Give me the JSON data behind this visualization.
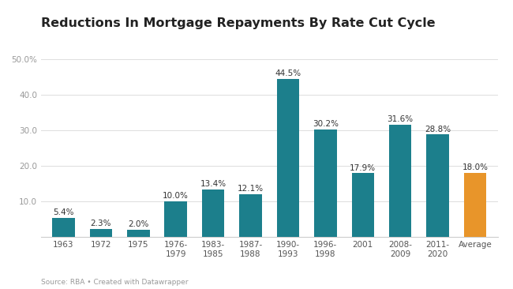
{
  "title": "Reductions In Mortgage Repayments By Rate Cut Cycle",
  "source": "Source: RBA • Created with Datawrapper",
  "categories": [
    "1963",
    "1972",
    "1975",
    "1976-\n1979",
    "1983-\n1985",
    "1987-\n1988",
    "1990-\n1993",
    "1996-\n1998",
    "2001",
    "2008-\n2009",
    "2011-\n2020",
    "Average"
  ],
  "values": [
    5.4,
    2.3,
    2.0,
    10.0,
    13.4,
    12.1,
    44.5,
    30.2,
    17.9,
    31.6,
    28.8,
    18.0
  ],
  "bar_colors": [
    "#1c7f8c",
    "#1c7f8c",
    "#1c7f8c",
    "#1c7f8c",
    "#1c7f8c",
    "#1c7f8c",
    "#1c7f8c",
    "#1c7f8c",
    "#1c7f8c",
    "#1c7f8c",
    "#1c7f8c",
    "#e8952a"
  ],
  "ylim": [
    0,
    52
  ],
  "yticks": [
    10.0,
    20.0,
    30.0,
    40.0,
    50.0
  ],
  "ytick_labels": [
    "10.0",
    "20.0",
    "30.0",
    "40.0",
    "50.0%"
  ],
  "background_color": "#ffffff",
  "title_fontsize": 11.5,
  "label_fontsize": 7.5,
  "tick_fontsize": 7.5,
  "source_fontsize": 6.5
}
